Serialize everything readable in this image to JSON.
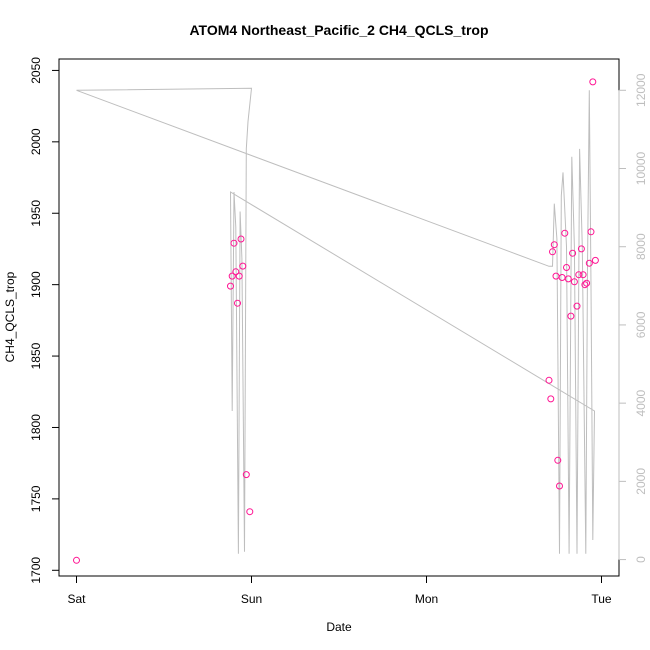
{
  "chart_data": {
    "type": "scatter",
    "title": "ATOM4 Northeast_Pacific_2 CH4_QCLS_trop",
    "xlabel": "Date",
    "ylabel": "CH4_QCLS_trop",
    "x_ticks": [
      {
        "label": "Sat",
        "value": 0
      },
      {
        "label": "Sun",
        "value": 1
      },
      {
        "label": "Mon",
        "value": 2
      },
      {
        "label": "Tue",
        "value": 3
      }
    ],
    "xlim": [
      -0.1,
      3.1
    ],
    "ylim": [
      1696,
      2058
    ],
    "y_ticks": [
      1700,
      1750,
      1800,
      1850,
      1900,
      1950,
      2000,
      2050
    ],
    "y2lim": [
      -420,
      12800
    ],
    "y2_ticks": [
      0,
      2000,
      4000,
      6000,
      8000,
      10000,
      12000
    ],
    "grid": false,
    "colors": {
      "points": "#ff1493",
      "line": "#bebebe",
      "right_axis": "#bebebe"
    },
    "series": [
      {
        "type": "scatter",
        "points": [
          {
            "x": 0.0,
            "y": 1707
          },
          {
            "x": 0.88,
            "y": 1899
          },
          {
            "x": 0.89,
            "y": 1906
          },
          {
            "x": 0.9,
            "y": 1929
          },
          {
            "x": 0.91,
            "y": 1909
          },
          {
            "x": 0.92,
            "y": 1887
          },
          {
            "x": 0.93,
            "y": 1906
          },
          {
            "x": 0.94,
            "y": 1932
          },
          {
            "x": 0.95,
            "y": 1913
          },
          {
            "x": 0.97,
            "y": 1767
          },
          {
            "x": 0.99,
            "y": 1741
          },
          {
            "x": 2.7,
            "y": 1833
          },
          {
            "x": 2.71,
            "y": 1820
          },
          {
            "x": 2.72,
            "y": 1923
          },
          {
            "x": 2.73,
            "y": 1928
          },
          {
            "x": 2.74,
            "y": 1906
          },
          {
            "x": 2.75,
            "y": 1777
          },
          {
            "x": 2.76,
            "y": 1759
          },
          {
            "x": 2.775,
            "y": 1905
          },
          {
            "x": 2.79,
            "y": 1936
          },
          {
            "x": 2.8,
            "y": 1912
          },
          {
            "x": 2.81,
            "y": 1904
          },
          {
            "x": 2.825,
            "y": 1878
          },
          {
            "x": 2.835,
            "y": 1922
          },
          {
            "x": 2.845,
            "y": 1902
          },
          {
            "x": 2.86,
            "y": 1885
          },
          {
            "x": 2.87,
            "y": 1907
          },
          {
            "x": 2.885,
            "y": 1925
          },
          {
            "x": 2.895,
            "y": 1907
          },
          {
            "x": 2.905,
            "y": 1900
          },
          {
            "x": 2.915,
            "y": 1901
          },
          {
            "x": 2.93,
            "y": 1915
          },
          {
            "x": 2.94,
            "y": 1937
          },
          {
            "x": 2.95,
            "y": 2042
          },
          {
            "x": 2.965,
            "y": 1917
          }
        ]
      },
      {
        "type": "line",
        "axis": "right",
        "points": [
          {
            "x": 0.0,
            "y": 12000
          },
          {
            "x": 1.0,
            "y": 12050
          },
          {
            "x": 0.98,
            "y": 11200
          },
          {
            "x": 0.97,
            "y": 10500
          },
          {
            "x": 0.96,
            "y": 200
          },
          {
            "x": 0.945,
            "y": 7700
          },
          {
            "x": 0.935,
            "y": 8900
          },
          {
            "x": 0.925,
            "y": 150
          },
          {
            "x": 0.91,
            "y": 8500
          },
          {
            "x": 0.9,
            "y": 9400
          },
          {
            "x": 0.89,
            "y": 3800
          },
          {
            "x": 0.88,
            "y": 9400
          },
          {
            "x": 0.88,
            "y": 9400
          },
          {
            "x": 2.96,
            "y": 3800
          },
          {
            "x": 2.95,
            "y": 500
          },
          {
            "x": 2.94,
            "y": 7000
          },
          {
            "x": 2.93,
            "y": 12000
          },
          {
            "x": 2.92,
            "y": 7500
          },
          {
            "x": 2.91,
            "y": 150
          },
          {
            "x": 2.89,
            "y": 8000
          },
          {
            "x": 2.875,
            "y": 10500
          },
          {
            "x": 2.86,
            "y": 150
          },
          {
            "x": 2.845,
            "y": 8000
          },
          {
            "x": 2.83,
            "y": 10300
          },
          {
            "x": 2.815,
            "y": 150
          },
          {
            "x": 2.8,
            "y": 8000
          },
          {
            "x": 2.78,
            "y": 9900
          },
          {
            "x": 2.77,
            "y": 9300
          },
          {
            "x": 2.76,
            "y": 150
          },
          {
            "x": 2.745,
            "y": 8200
          },
          {
            "x": 2.73,
            "y": 9100
          },
          {
            "x": 2.72,
            "y": 7500
          },
          {
            "x": 2.7,
            "y": 7500
          },
          {
            "x": 0.0,
            "y": 12000
          }
        ]
      }
    ]
  }
}
